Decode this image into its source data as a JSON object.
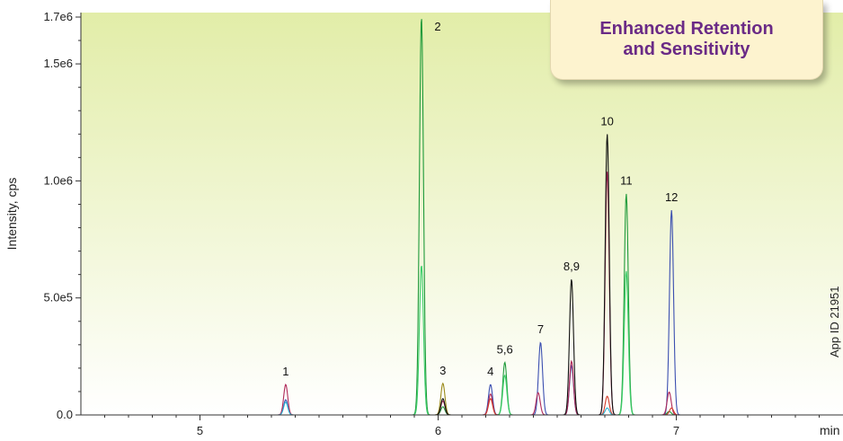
{
  "chart_data": {
    "type": "line",
    "title": "",
    "xlabel": "min",
    "ylabel": "Intensity, cps",
    "xlim": [
      4.5,
      7.7
    ],
    "ylim": [
      0,
      1700000.0
    ],
    "x_ticks": [
      5,
      6,
      7
    ],
    "x_tick_labels": [
      "5",
      "6",
      "7"
    ],
    "y_ticks": [
      0,
      500000,
      1000000,
      1500000,
      1700000
    ],
    "y_tick_labels": [
      "0.0",
      "5.0e5",
      "1.0e6",
      "1.5e6",
      "1.7e6"
    ],
    "grid": false,
    "background": "light yellow-green gradient",
    "series": [
      {
        "color": "#1f9a3a",
        "peaks": [
          {
            "x": 5.93,
            "y": 1700000
          },
          {
            "x": 6.02,
            "y": 35000
          },
          {
            "x": 6.28,
            "y": 225000
          },
          {
            "x": 6.79,
            "y": 945000
          },
          {
            "x": 6.97,
            "y": 15000
          }
        ]
      },
      {
        "color": "#3ccf6a",
        "peaks": [
          {
            "x": 5.93,
            "y": 640000
          },
          {
            "x": 6.28,
            "y": 170000
          },
          {
            "x": 6.79,
            "y": 615000
          }
        ]
      },
      {
        "color": "#3b4fb0",
        "peaks": [
          {
            "x": 5.36,
            "y": 65000
          },
          {
            "x": 6.22,
            "y": 130000
          },
          {
            "x": 6.43,
            "y": 310000
          },
          {
            "x": 6.56,
            "y": 210000
          },
          {
            "x": 6.98,
            "y": 875000
          }
        ]
      },
      {
        "color": "#b02a5a",
        "peaks": [
          {
            "x": 5.36,
            "y": 130000
          },
          {
            "x": 6.02,
            "y": 60000
          },
          {
            "x": 6.22,
            "y": 90000
          },
          {
            "x": 6.42,
            "y": 95000
          },
          {
            "x": 6.56,
            "y": 230000
          },
          {
            "x": 6.71,
            "y": 1040000
          },
          {
            "x": 6.97,
            "y": 98000
          }
        ]
      },
      {
        "color": "#d23a2a",
        "peaks": [
          {
            "x": 6.22,
            "y": 70000
          },
          {
            "x": 6.71,
            "y": 80000
          },
          {
            "x": 6.98,
            "y": 30000
          }
        ]
      },
      {
        "color": "#9a8a1a",
        "peaks": [
          {
            "x": 6.02,
            "y": 135000
          }
        ]
      },
      {
        "color": "#111111",
        "peaks": [
          {
            "x": 6.02,
            "y": 70000
          },
          {
            "x": 6.56,
            "y": 580000
          },
          {
            "x": 6.71,
            "y": 1200000
          }
        ]
      },
      {
        "color": "#2ab5d6",
        "peaks": [
          {
            "x": 5.36,
            "y": 55000
          },
          {
            "x": 6.71,
            "y": 30000
          }
        ]
      }
    ],
    "peak_labels": [
      {
        "text": "1",
        "x": 5.36,
        "y": 130000
      },
      {
        "text": "2",
        "x": 5.93,
        "y": 1700000
      },
      {
        "text": "3",
        "x": 6.02,
        "y": 135000
      },
      {
        "text": "4",
        "x": 6.22,
        "y": 130000
      },
      {
        "text": "5,6",
        "x": 6.28,
        "y": 225000
      },
      {
        "text": "7",
        "x": 6.43,
        "y": 310000
      },
      {
        "text": "8,9",
        "x": 6.56,
        "y": 580000
      },
      {
        "text": "10",
        "x": 6.71,
        "y": 1200000
      },
      {
        "text": "11",
        "x": 6.79,
        "y": 945000
      },
      {
        "text": "12",
        "x": 6.98,
        "y": 875000
      }
    ]
  },
  "callout": {
    "line1": "Enhanced Retention",
    "line2": "and Sensitivity",
    "color": "#6a2a86"
  },
  "side_note": "App ID 21951"
}
